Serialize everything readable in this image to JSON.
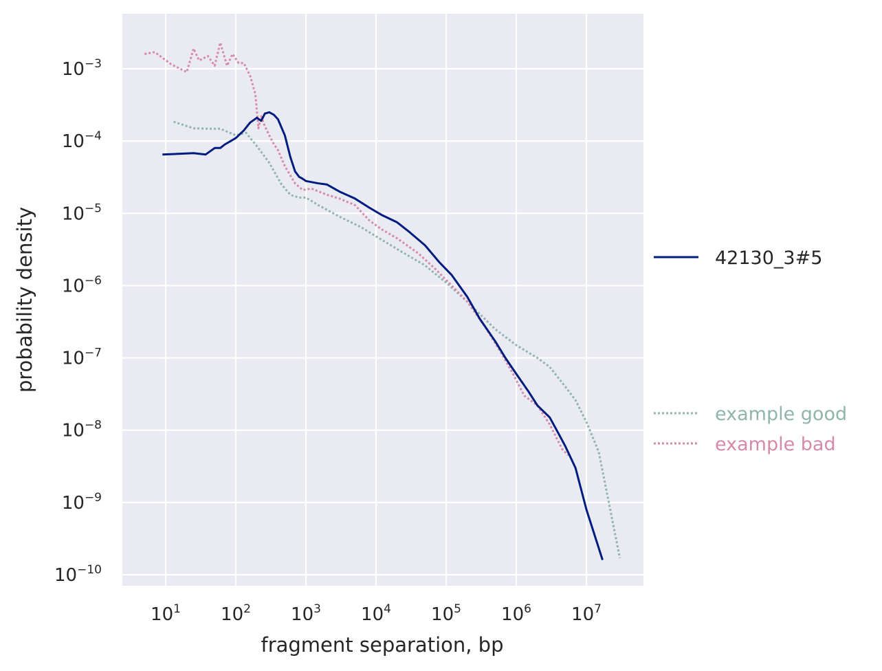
{
  "chart_data": {
    "type": "line",
    "xlabel": "fragment separation, bp",
    "ylabel": "probability density",
    "xscale": "log",
    "yscale": "log",
    "xlim": [
      2.5,
      60000000
    ],
    "ylim": [
      6e-11,
      0.006
    ],
    "grid": true,
    "background": "#eaeaf2",
    "x_ticks": [
      {
        "base": "10",
        "exp": "1",
        "value": 10
      },
      {
        "base": "10",
        "exp": "2",
        "value": 100
      },
      {
        "base": "10",
        "exp": "3",
        "value": 1000
      },
      {
        "base": "10",
        "exp": "4",
        "value": 10000
      },
      {
        "base": "10",
        "exp": "5",
        "value": 100000
      },
      {
        "base": "10",
        "exp": "6",
        "value": 1000000
      },
      {
        "base": "10",
        "exp": "7",
        "value": 10000000
      }
    ],
    "y_ticks": [
      {
        "base": "10",
        "exp": "−3",
        "value": 0.001
      },
      {
        "base": "10",
        "exp": "−4",
        "value": 0.0001
      },
      {
        "base": "10",
        "exp": "−5",
        "value": 1e-05
      },
      {
        "base": "10",
        "exp": "−6",
        "value": 1e-06
      },
      {
        "base": "10",
        "exp": "−7",
        "value": 1e-07
      },
      {
        "base": "10",
        "exp": "−8",
        "value": 1e-08
      },
      {
        "base": "10",
        "exp": "−9",
        "value": 1e-09
      },
      {
        "base": "10",
        "exp": "−10",
        "value": 1e-10
      }
    ],
    "legend": {
      "placement": "outside-right",
      "primary": [
        {
          "name": "42130_3#5",
          "color": "#001c7f",
          "style": "solid"
        }
      ],
      "reference": [
        {
          "name": "example good",
          "color": "#8fb5ad",
          "style": "dotted"
        },
        {
          "name": "example bad",
          "color": "#d48aa8",
          "style": "dotted"
        }
      ]
    },
    "series": [
      {
        "name": "example good",
        "color": "#8fb5ad",
        "style": "dotted",
        "x": [
          13,
          25,
          40,
          60,
          100,
          140,
          200,
          300,
          450,
          600,
          800,
          1000,
          1500,
          3000,
          6000,
          10000,
          20000,
          50000,
          100000,
          200000,
          500000,
          1000000,
          2000000,
          3000000,
          5000000,
          7000000,
          10000000,
          15000000,
          30000000
        ],
        "y": [
          0.000185,
          0.00015,
          0.000148,
          0.000148,
          0.00012,
          0.00013,
          8.5e-05,
          5e-05,
          2.5e-05,
          1.8e-05,
          1.65e-05,
          1.65e-05,
          1.3e-05,
          9e-06,
          6.5e-06,
          4.8e-06,
          3.2e-06,
          1.9e-06,
          1.1e-06,
          6e-07,
          2.5e-07,
          1.5e-07,
          1e-07,
          7.5e-08,
          4e-08,
          2.6e-08,
          1.3e-08,
          5e-09,
          1.7e-10
        ]
      },
      {
        "name": "example bad",
        "color": "#d48aa8",
        "style": "dotted",
        "x": [
          5,
          7,
          12,
          20,
          25,
          30,
          40,
          50,
          60,
          75,
          90,
          110,
          130,
          160,
          190,
          210,
          230,
          260,
          300,
          350,
          400,
          500,
          700,
          900,
          1200,
          2000,
          3000,
          5000,
          8000,
          12000,
          20000,
          40000,
          70000,
          120000,
          200000,
          350000,
          600000,
          900000,
          1300000,
          2000000,
          3000000,
          4500000,
          5500000
        ],
        "y": [
          0.0016,
          0.0017,
          0.00115,
          0.0009,
          0.0019,
          0.0013,
          0.0015,
          0.0011,
          0.0023,
          0.0011,
          0.0016,
          0.0012,
          0.0012,
          0.0008,
          0.00045,
          0.00015,
          0.00022,
          0.00016,
          0.00012,
          9e-05,
          7.5e-05,
          4.5e-05,
          2.6e-05,
          2.1e-05,
          2.2e-05,
          1.8e-05,
          1.6e-05,
          1.3e-05,
          8e-06,
          6e-06,
          4.5e-06,
          2.8e-06,
          1.7e-06,
          1e-06,
          6e-07,
          2.8e-07,
          1.2e-07,
          6e-08,
          3e-08,
          2.2e-08,
          1.2e-08,
          5.5e-09,
          4.5e-09
        ]
      },
      {
        "name": "42130_3#5",
        "color": "#001c7f",
        "style": "solid",
        "x": [
          9,
          25,
          37,
          50,
          60,
          70,
          85,
          100,
          130,
          160,
          200,
          230,
          260,
          300,
          350,
          400,
          500,
          600,
          700,
          800,
          900,
          1000,
          1500,
          2000,
          3000,
          5000,
          8000,
          12000,
          20000,
          30000,
          50000,
          80000,
          120000,
          200000,
          300000,
          500000,
          700000,
          1000000,
          1500000,
          2000000,
          3000000,
          4000000,
          5000000,
          7000000,
          10000000,
          17000000
        ],
        "y": [
          6.5e-05,
          6.8e-05,
          6.5e-05,
          8e-05,
          8e-05,
          9e-05,
          0.0001,
          0.00011,
          0.00014,
          0.00018,
          0.00021,
          0.00019,
          0.00024,
          0.00025,
          0.00023,
          0.0002,
          0.00012,
          6e-05,
          3.8e-05,
          3.2e-05,
          3e-05,
          2.8e-05,
          2.6e-05,
          2.5e-05,
          2e-05,
          1.6e-05,
          1.2e-05,
          9.5e-06,
          7.5e-06,
          5.5e-06,
          3.6e-06,
          2.1e-06,
          1.4e-06,
          7e-07,
          3.5e-07,
          1.7e-07,
          1e-07,
          6e-08,
          3.4e-08,
          2.2e-08,
          1.5e-08,
          9e-09,
          6e-09,
          3e-09,
          8e-10,
          1.6e-10
        ]
      }
    ]
  }
}
